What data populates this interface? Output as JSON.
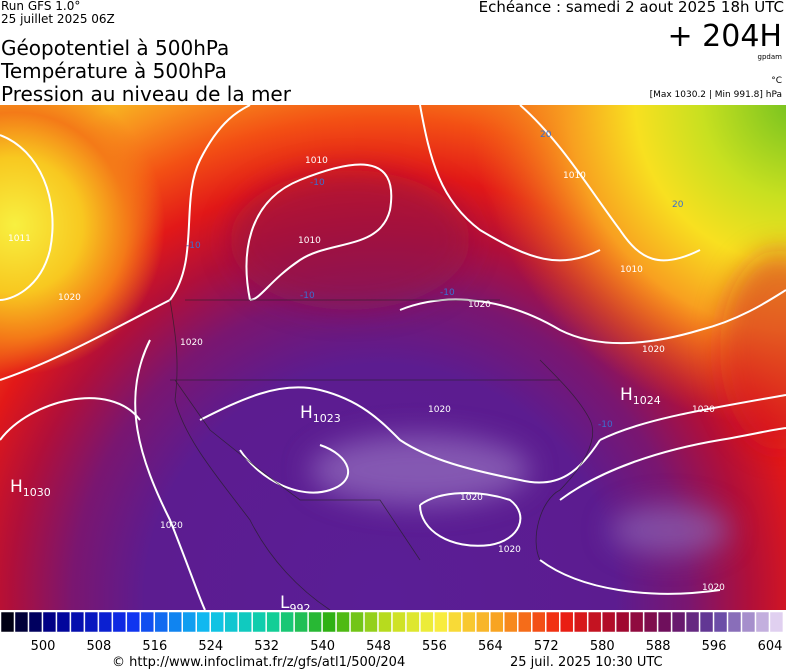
{
  "header": {
    "run": "Run GFS 1.0°",
    "run_date": "25 juillet 2025 06Z",
    "valid": "Echéance : samedi 2 aout 2025 18h UTC",
    "lead": "+ 204H",
    "unit_geopotential": "gpdam",
    "unit_temperature": "°C",
    "pressure_range": "[Max 1030.2 | Min 991.8] hPa",
    "titles": [
      "Géopotentiel à 500hPa",
      "Température à 500hPa",
      "Pression au niveau de la mer"
    ]
  },
  "map": {
    "centers": [
      {
        "type": "H",
        "value": "1030"
      },
      {
        "type": "H",
        "value": "1023"
      },
      {
        "type": "H",
        "value": "1024"
      },
      {
        "type": "L",
        "value": "992"
      }
    ],
    "isobar_labels": [
      "1020",
      "1020",
      "1020",
      "1020",
      "1020",
      "1020",
      "1020",
      "1020",
      "1020",
      "1020",
      "1010",
      "1010",
      "1010",
      "1010",
      "1011"
    ],
    "temperature_labels": [
      "-10",
      "-10",
      "-10",
      "-10",
      "-10",
      "20",
      "20"
    ]
  },
  "colorbar": {
    "labels": [
      500,
      508,
      516,
      524,
      532,
      540,
      548,
      556,
      564,
      572,
      580,
      588,
      596,
      604
    ]
  },
  "footer": {
    "url": "© http://www.infoclimat.fr/z/gfs/atl1/500/204",
    "timestamp": "25 juil. 2025 10:30 UTC"
  }
}
